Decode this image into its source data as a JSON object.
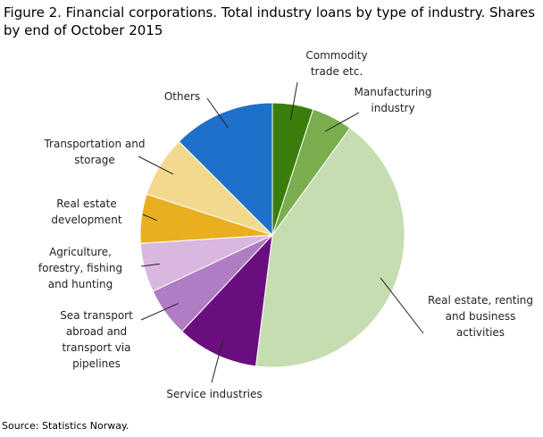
{
  "chart_data": {
    "type": "pie",
    "title": "Figure 2. Financial corporations. Total industry loans by type of industry. Shares by end of October 2015",
    "source": "Source: Statistics Norway.",
    "categories": [
      "Commodity trade etc.",
      "Manufacturing industry",
      "Real estate, renting and business activities",
      "Service industries",
      "Sea transport abroad and transport via pipelines",
      "Agriculture, forestry, fishing and hunting",
      "Real estate development",
      "Transportation and storage",
      "Others"
    ],
    "values": [
      5,
      5,
      42,
      10,
      6,
      6,
      6,
      7.5,
      12.5
    ],
    "colors": [
      "#3a7d0a",
      "#7aad4e",
      "#c5ddb0",
      "#6a0e7f",
      "#b07cc3",
      "#d9b8e0",
      "#e8b020",
      "#f2d98e",
      "#1f70c8"
    ]
  }
}
